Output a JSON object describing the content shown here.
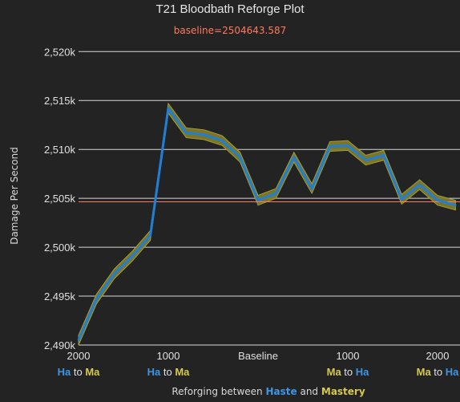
{
  "colors": {
    "background": "#232323",
    "grid": "#d8d8d8",
    "line": "#1f7fd6",
    "band": "#7f7a2a",
    "band_edge": "#a29c3a",
    "baseline": "#ff7a5c",
    "haste": "#3d95e6",
    "mastery": "#d4c94e",
    "text": "#e0e0e0"
  },
  "chart_data": {
    "type": "line",
    "title": "T21 Bloodbath Reforge Plot",
    "subtitle": "baseline=2504643.587",
    "ylabel": "Damage Per Second",
    "xlabel": {
      "prefix": "Reforging between ",
      "haste": "Haste",
      "and": " and ",
      "mastery": "Mastery"
    },
    "baseline_value": 2504643.587,
    "ylim": [
      2490000,
      2521500
    ],
    "xlim": [
      -2000,
      2250
    ],
    "yticks": [
      {
        "value": 2490000,
        "label": "2,490k"
      },
      {
        "value": 2495000,
        "label": "2,495k"
      },
      {
        "value": 2500000,
        "label": "2,500k"
      },
      {
        "value": 2505000,
        "label": "2,505k"
      },
      {
        "value": 2510000,
        "label": "2,510k"
      },
      {
        "value": 2515000,
        "label": "2,515k"
      },
      {
        "value": 2520000,
        "label": "2,520k"
      }
    ],
    "xticks": [
      {
        "value": -2000,
        "label": "2000",
        "from": "Ha",
        "to_word": " to ",
        "to": "Ma",
        "from_color": "haste",
        "to_color": "mastery"
      },
      {
        "value": -1000,
        "label": "1000",
        "from": "Ha",
        "to_word": " to ",
        "to": "Ma",
        "from_color": "haste",
        "to_color": "mastery"
      },
      {
        "value": 0,
        "label": "Baseline"
      },
      {
        "value": 1000,
        "label": "1000",
        "from": "Ma",
        "to_word": " to ",
        "to": "Ha",
        "from_color": "mastery",
        "to_color": "haste"
      },
      {
        "value": 2000,
        "label": "2000",
        "from": "Ma",
        "to_word": " to ",
        "to": "Ha",
        "from_color": "mastery",
        "to_color": "haste"
      }
    ],
    "series": [
      {
        "x": [
          -2000,
          -1800,
          -1600,
          -1400,
          -1200,
          -1000,
          -800,
          -600,
          -400,
          -200,
          0,
          200,
          400,
          600,
          800,
          1000,
          1200,
          1400,
          1600,
          1800,
          2000,
          2200
        ],
        "values": [
          2490500,
          2494700,
          2497300,
          2499100,
          2501200,
          2514200,
          2511700,
          2511500,
          2510900,
          2509200,
          2504800,
          2505500,
          2509200,
          2506000,
          2510300,
          2510400,
          2508900,
          2509400,
          2504900,
          2506400,
          2504800,
          2504300
        ],
        "band_half_width": 500
      }
    ]
  }
}
